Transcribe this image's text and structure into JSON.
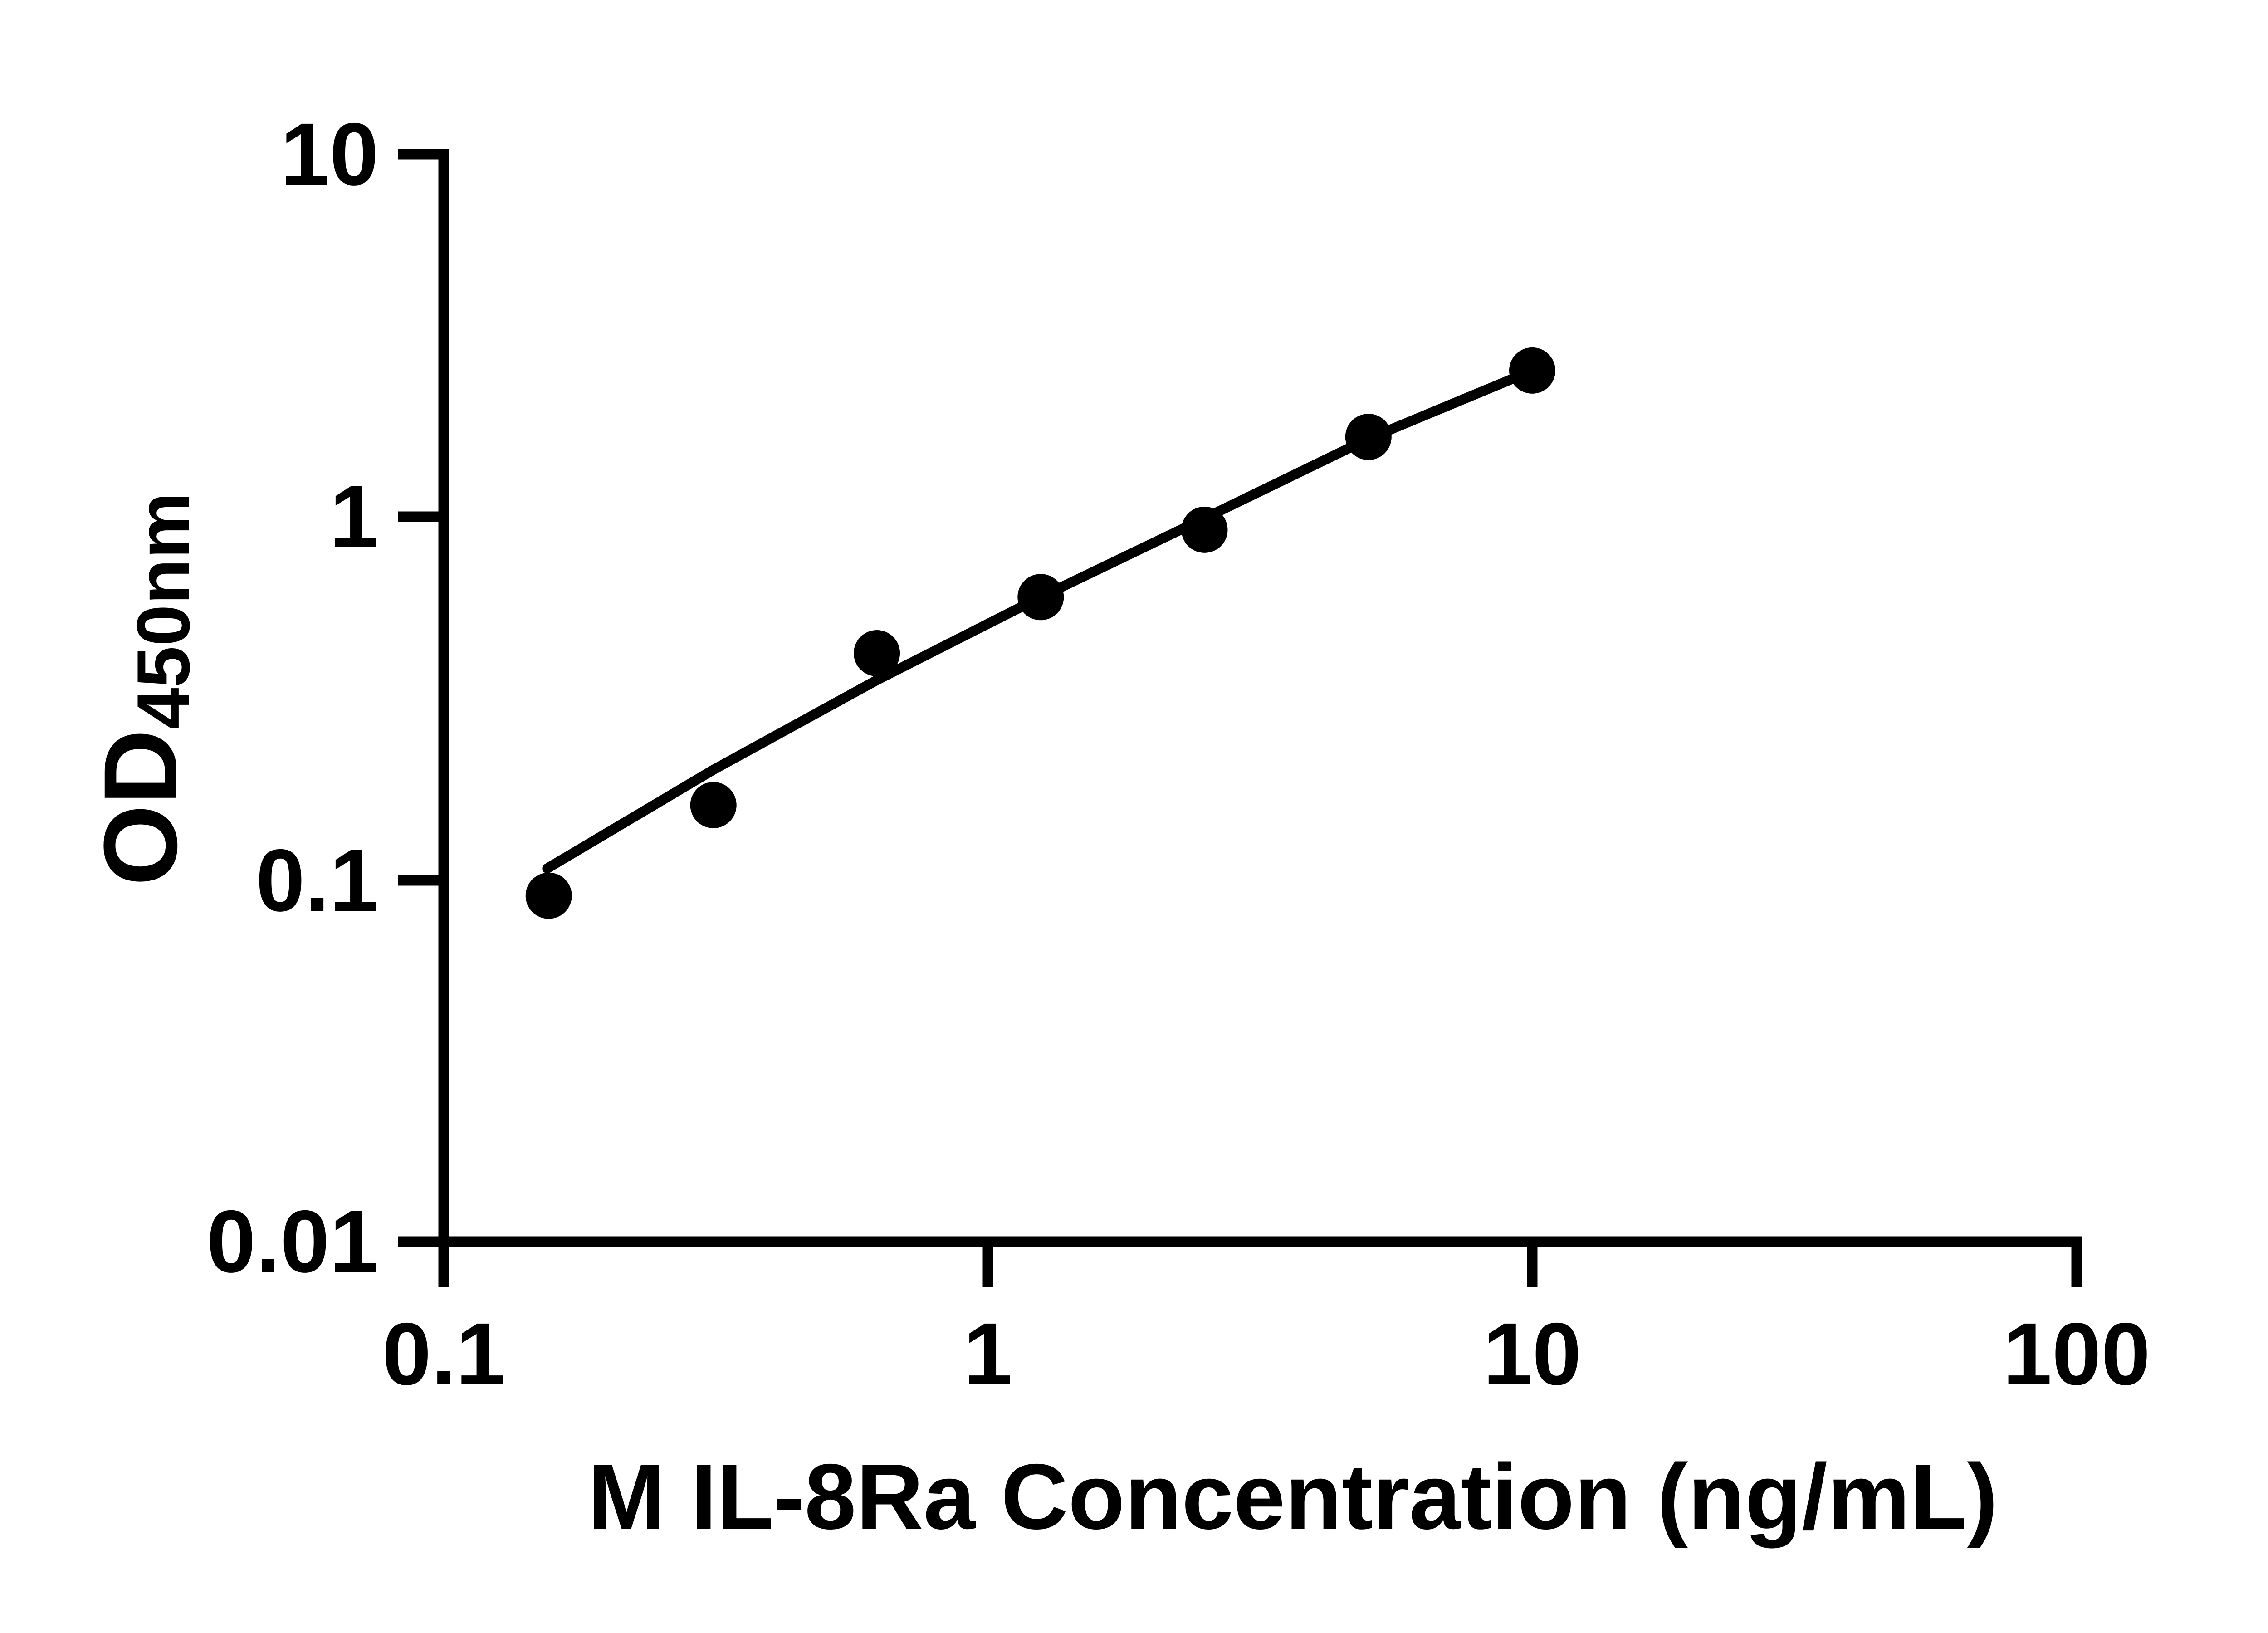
{
  "figure": {
    "background": "#ffffff",
    "ink_color": "#000000"
  },
  "chart_data": {
    "type": "scatter",
    "title": "",
    "xlabel": "M IL-8Ra Concentration (ng/mL)",
    "ylabel": {
      "base": "OD",
      "subscript": "450nm"
    },
    "x_scale": "log",
    "y_scale": "log",
    "xlim": [
      0.1,
      100
    ],
    "ylim": [
      0.01,
      10
    ],
    "x_ticks": [
      0.1,
      1,
      10,
      100
    ],
    "x_tick_labels": [
      "0.1",
      "1",
      "10",
      "100"
    ],
    "y_ticks": [
      0.01,
      0.1,
      1,
      10
    ],
    "y_tick_labels": [
      "0.01",
      "0.1",
      "1",
      "10"
    ],
    "grid": false,
    "legend": null,
    "series": [
      {
        "name": "standard-curve-points",
        "marker": "circle",
        "color": "#000000",
        "x": [
          0.156,
          0.313,
          0.625,
          1.25,
          2.5,
          5,
          10
        ],
        "y": [
          0.09,
          0.16,
          0.42,
          0.6,
          0.92,
          1.66,
          2.53
        ]
      }
    ],
    "fit_line": {
      "name": "fit-curve",
      "color": "#000000",
      "points": [
        [
          0.155,
          0.107
        ],
        [
          0.3125,
          0.2
        ],
        [
          0.625,
          0.354
        ],
        [
          1.25,
          0.6
        ],
        [
          2.5,
          0.99
        ],
        [
          5,
          1.64
        ],
        [
          10,
          2.53
        ]
      ]
    }
  }
}
